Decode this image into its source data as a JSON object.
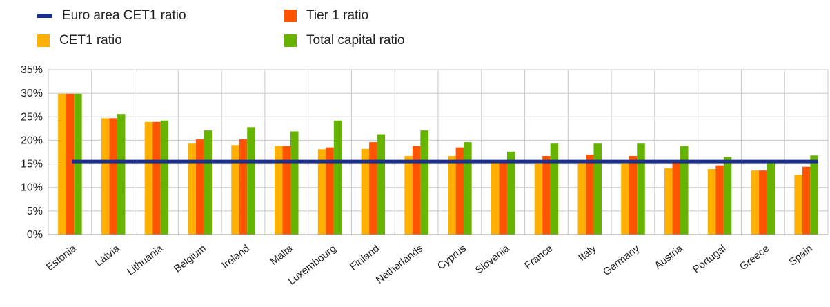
{
  "chart_data": {
    "type": "bar",
    "title": "",
    "xlabel": "",
    "ylabel": "",
    "ylim": [
      0,
      35
    ],
    "yticks": [
      "0%",
      "5%",
      "10%",
      "15%",
      "20%",
      "25%",
      "30%",
      "35%"
    ],
    "grid": true,
    "legend_position": "top-left",
    "categories": [
      "Estonia",
      "Latvia",
      "Lithuania",
      "Belgium",
      "Ireland",
      "Malta",
      "Luxembourg",
      "Finland",
      "Netherlands",
      "Cyprus",
      "Slovenia",
      "France",
      "Italy",
      "Germany",
      "Austria",
      "Portugal",
      "Greece",
      "Spain"
    ],
    "series": [
      {
        "name": "CET1 ratio",
        "color": "#FFB000",
        "values": [
          29.9,
          24.7,
          23.9,
          19.3,
          19.0,
          18.8,
          18.1,
          18.2,
          16.7,
          16.7,
          15.5,
          15.1,
          15.1,
          15.1,
          14.1,
          13.9,
          13.6,
          12.7
        ]
      },
      {
        "name": "Tier 1 ratio",
        "color": "#FF5400",
        "values": [
          29.9,
          24.7,
          23.9,
          20.2,
          20.2,
          18.8,
          18.5,
          19.6,
          18.8,
          18.5,
          15.5,
          16.7,
          17.0,
          16.7,
          15.2,
          14.7,
          13.6,
          14.4
        ]
      },
      {
        "name": "Total capital ratio",
        "color": "#66B300",
        "values": [
          29.9,
          25.6,
          24.2,
          22.1,
          22.8,
          21.9,
          24.2,
          21.3,
          22.1,
          19.6,
          17.6,
          19.3,
          19.3,
          19.3,
          18.8,
          16.5,
          15.8,
          16.8
        ]
      }
    ],
    "reference_line": {
      "name": "Euro area CET1 ratio",
      "value": 15.5,
      "color": "#1B2F8E"
    }
  },
  "legend": {
    "items": [
      {
        "label": "Euro area CET1 ratio",
        "color": "#1B2F8E",
        "kind": "line"
      },
      {
        "label": "Tier 1 ratio",
        "color": "#FF5400",
        "kind": "square"
      },
      {
        "label": "CET1 ratio",
        "color": "#FFB000",
        "kind": "square"
      },
      {
        "label": "Total capital ratio",
        "color": "#66B300",
        "kind": "square"
      }
    ]
  }
}
